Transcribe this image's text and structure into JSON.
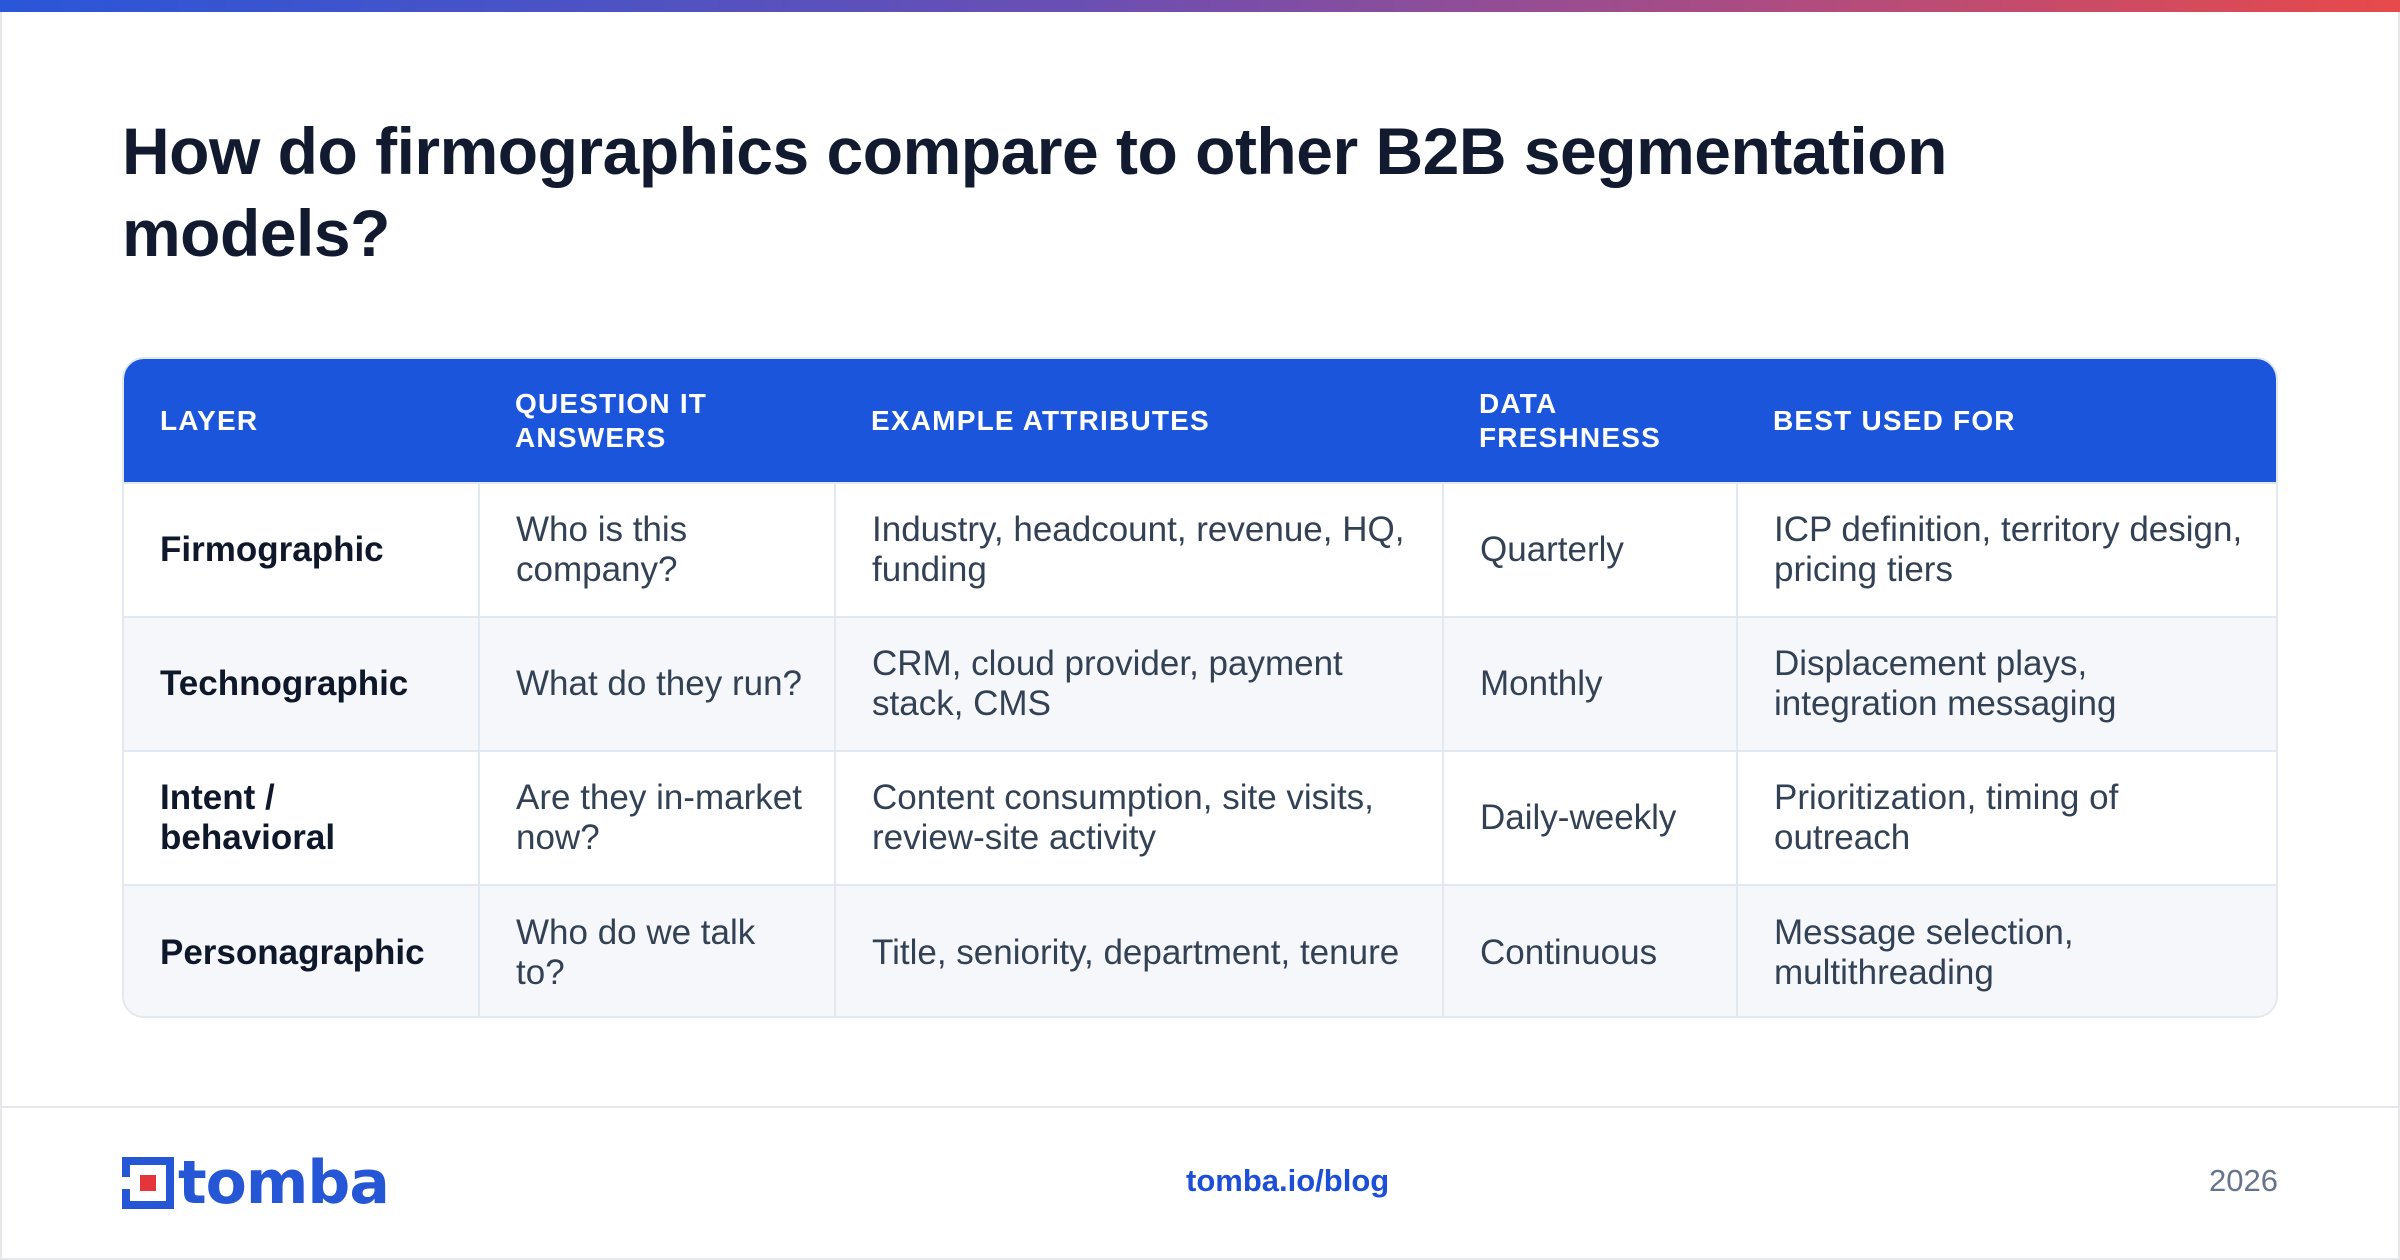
{
  "title": "How do firmographics compare to other B2B segmentation models?",
  "table": {
    "headers": [
      "LAYER",
      "QUESTION IT ANSWERS",
      "EXAMPLE ATTRIBUTES",
      "DATA FRESHNESS",
      "BEST USED FOR"
    ],
    "rows": [
      {
        "layer": "Firmographic",
        "question": "Who is this company?",
        "attributes": "Industry, headcount, revenue, HQ, funding",
        "freshness": "Quarterly",
        "best_used_for": "ICP definition, territory design, pricing tiers"
      },
      {
        "layer": "Technographic",
        "question": "What do they run?",
        "attributes": "CRM, cloud provider, payment stack, CMS",
        "freshness": "Monthly",
        "best_used_for": "Displacement plays, integration messaging"
      },
      {
        "layer": "Intent / behavioral",
        "question": "Are they in-market now?",
        "attributes": "Content consumption, site visits, review-site activity",
        "freshness": "Daily-weekly",
        "best_used_for": "Prioritization, timing of outreach"
      },
      {
        "layer": "Personagraphic",
        "question": "Who do we talk to?",
        "attributes": "Title, seniority, department, tenure",
        "freshness": "Continuous",
        "best_used_for": "Message selection, multithreading"
      }
    ]
  },
  "footer": {
    "logo_text": "tomba",
    "url": "tomba.io/blog",
    "year": "2026"
  },
  "colors": {
    "header_bg": "#1b55dc",
    "brand_blue": "#2456d6",
    "logo_red": "#e5343a",
    "alt_row_bg": "#f5f7fa"
  }
}
